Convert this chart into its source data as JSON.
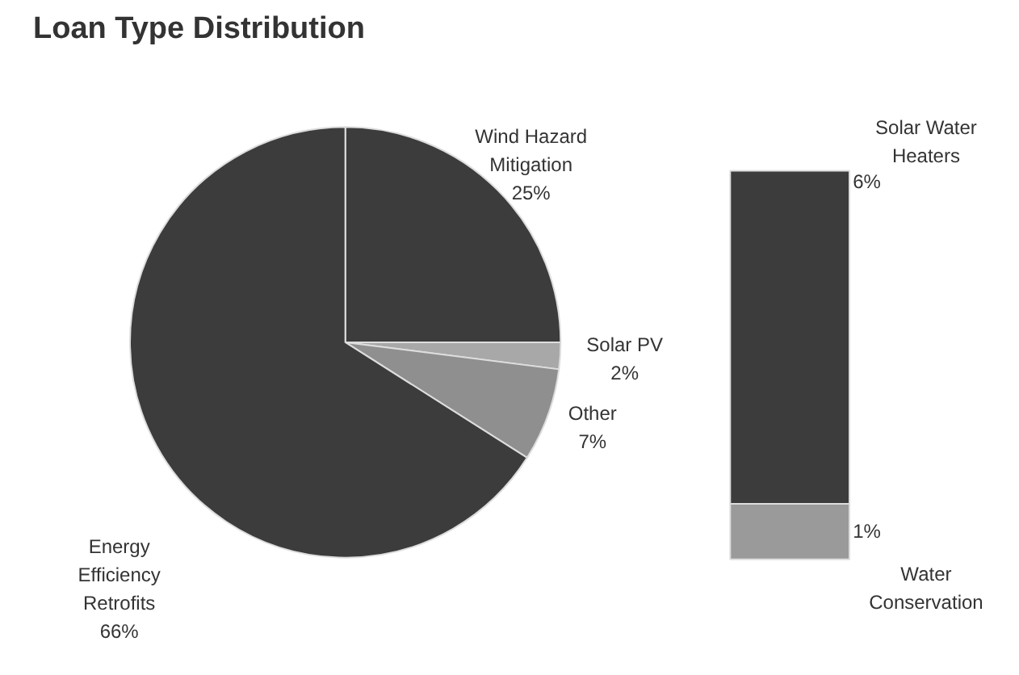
{
  "chart_data": [
    {
      "type": "pie",
      "title": "Loan Type Distribution",
      "categories": [
        "Wind Hazard Mitigation",
        "Solar PV",
        "Other",
        "Energy Efficiency Retrofits"
      ],
      "values": [
        25,
        2,
        7,
        66
      ],
      "value_labels": [
        "25%",
        "2%",
        "7%",
        "66%"
      ],
      "colors": [
        "#3c3c3c",
        "#a8a8a8",
        "#8f8f8f",
        "#3c3c3c"
      ]
    },
    {
      "type": "bar",
      "stacked": true,
      "categories": [
        null
      ],
      "series": [
        {
          "name": "Water Conservation",
          "color": "#9a9a9a",
          "values": [
            1
          ],
          "value_labels": [
            "1%"
          ]
        },
        {
          "name": "Solar Water Heaters",
          "color": "#3c3c3c",
          "values": [
            6
          ],
          "value_labels": [
            "6%"
          ]
        }
      ]
    }
  ]
}
